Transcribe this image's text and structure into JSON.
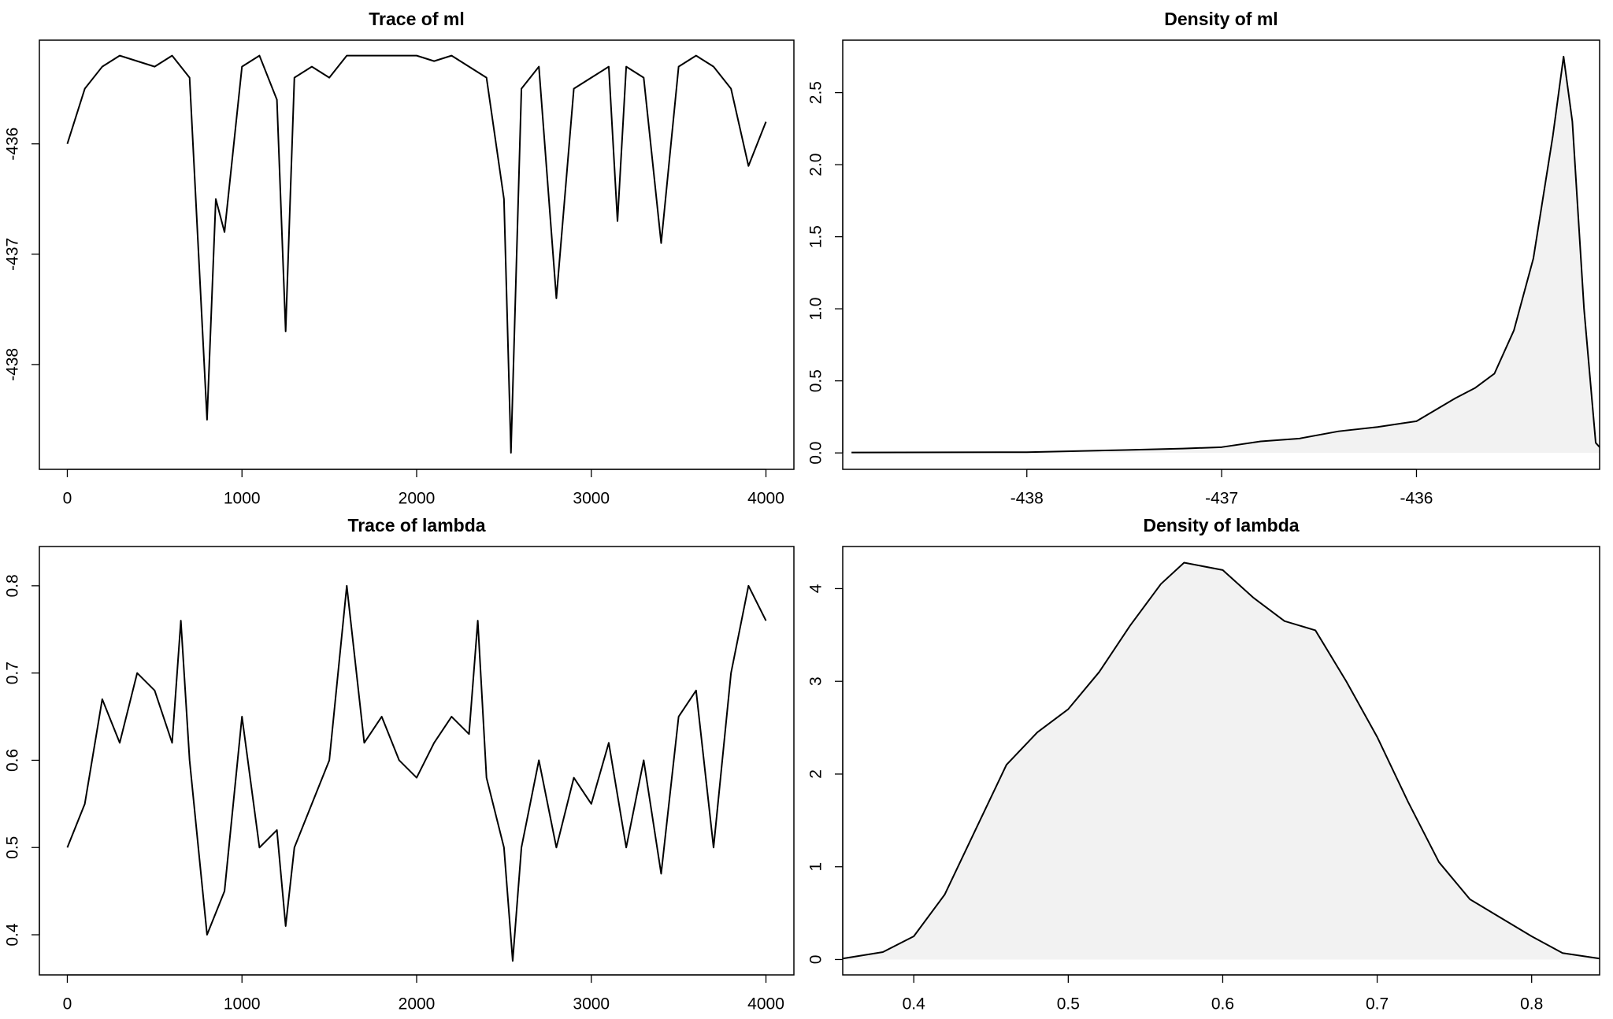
{
  "chart_data": [
    {
      "type": "line",
      "title": "Trace of ml",
      "color": "#000000",
      "x": [
        0,
        100,
        200,
        300,
        400,
        500,
        600,
        700,
        800,
        850,
        900,
        1000,
        1100,
        1200,
        1250,
        1300,
        1400,
        1500,
        1600,
        1700,
        1800,
        1900,
        2000,
        2100,
        2200,
        2300,
        2400,
        2500,
        2540,
        2600,
        2700,
        2800,
        2900,
        3000,
        3100,
        3150,
        3200,
        3300,
        3400,
        3500,
        3600,
        3700,
        3800,
        3900,
        4000
      ],
      "values": [
        -436.0,
        -435.5,
        -435.3,
        -435.2,
        -435.25,
        -435.3,
        -435.2,
        -435.4,
        -438.5,
        -436.5,
        -436.8,
        -435.3,
        -435.2,
        -435.6,
        -437.7,
        -435.4,
        -435.3,
        -435.4,
        -435.2,
        -435.2,
        -435.2,
        -435.2,
        -435.2,
        -435.25,
        -435.2,
        -435.3,
        -435.4,
        -436.5,
        -438.8,
        -435.5,
        -435.3,
        -437.4,
        -435.5,
        -435.4,
        -435.3,
        -436.7,
        -435.3,
        -435.4,
        -436.9,
        -435.3,
        -435.2,
        -435.3,
        -435.5,
        -436.2,
        -435.8
      ],
      "xlim": [
        -160,
        4160
      ],
      "ylim": [
        -438.95,
        -435.06
      ],
      "xticks": [
        0,
        1000,
        2000,
        3000,
        4000
      ],
      "yticks": [
        -438,
        -437,
        -436
      ]
    },
    {
      "type": "area",
      "title": "Density of ml",
      "color": "#000000",
      "fill": "#f2f2f2",
      "x": [
        -438.9,
        -438,
        -437.5,
        -437.2,
        -437,
        -436.8,
        -436.6,
        -436.4,
        -436.2,
        -436,
        -435.9,
        -435.8,
        -435.7,
        -435.6,
        -435.5,
        -435.4,
        -435.3,
        -435.245,
        -435.2,
        -435.14,
        -435.08,
        -435.06
      ],
      "values": [
        0.003,
        0.005,
        0.02,
        0.03,
        0.04,
        0.08,
        0.1,
        0.15,
        0.18,
        0.22,
        0.3,
        0.38,
        0.45,
        0.55,
        0.85,
        1.35,
        2.2,
        2.75,
        2.3,
        1.0,
        0.07,
        0.04
      ],
      "xlim": [
        -438.945,
        -435.06
      ],
      "ylim": [
        -0.114,
        2.864
      ],
      "xticks": [
        -438,
        -437,
        -436
      ],
      "yticks": [
        {
          "value": 0,
          "label": "0.0"
        },
        0.5,
        {
          "value": 1,
          "label": "1.0"
        },
        1.5,
        {
          "value": 2,
          "label": "2.0"
        },
        2.5
      ]
    },
    {
      "type": "line",
      "title": "Trace of lambda",
      "color": "#000000",
      "x": [
        0,
        100,
        200,
        300,
        400,
        500,
        600,
        650,
        700,
        800,
        900,
        1000,
        1100,
        1200,
        1250,
        1300,
        1400,
        1500,
        1600,
        1700,
        1800,
        1900,
        2000,
        2100,
        2200,
        2300,
        2350,
        2400,
        2500,
        2550,
        2600,
        2700,
        2800,
        2900,
        3000,
        3100,
        3200,
        3300,
        3400,
        3500,
        3600,
        3700,
        3800,
        3900,
        4000
      ],
      "values": [
        0.5,
        0.55,
        0.67,
        0.62,
        0.7,
        0.68,
        0.62,
        0.76,
        0.6,
        0.4,
        0.45,
        0.65,
        0.5,
        0.52,
        0.41,
        0.5,
        0.55,
        0.6,
        0.8,
        0.62,
        0.65,
        0.6,
        0.58,
        0.62,
        0.65,
        0.63,
        0.76,
        0.58,
        0.5,
        0.37,
        0.5,
        0.6,
        0.5,
        0.58,
        0.55,
        0.62,
        0.5,
        0.6,
        0.47,
        0.65,
        0.68,
        0.5,
        0.7,
        0.8,
        0.76
      ],
      "xlim": [
        -160,
        4160
      ],
      "ylim": [
        0.354,
        0.845
      ],
      "xticks": [
        0,
        1000,
        2000,
        3000,
        4000
      ],
      "yticks": [
        0.4,
        0.5,
        0.6,
        0.7,
        0.8
      ]
    },
    {
      "type": "area",
      "title": "Density of lambda",
      "color": "#000000",
      "fill": "#f2f2f2",
      "x": [
        0.354,
        0.38,
        0.4,
        0.42,
        0.44,
        0.46,
        0.48,
        0.5,
        0.52,
        0.54,
        0.56,
        0.575,
        0.6,
        0.62,
        0.64,
        0.66,
        0.68,
        0.7,
        0.72,
        0.74,
        0.76,
        0.78,
        0.8,
        0.82,
        0.844
      ],
      "values": [
        0.01,
        0.08,
        0.25,
        0.7,
        1.4,
        2.1,
        2.45,
        2.7,
        3.1,
        3.6,
        4.05,
        4.28,
        4.2,
        3.9,
        3.65,
        3.55,
        3.0,
        2.4,
        1.7,
        1.05,
        0.65,
        0.45,
        0.25,
        0.07,
        0.01
      ],
      "xlim": [
        0.354,
        0.844
      ],
      "ylim": [
        -0.166,
        4.454
      ],
      "xticks": [
        0.4,
        0.5,
        0.6,
        0.7,
        0.8
      ],
      "yticks": [
        0,
        1,
        2,
        3,
        4
      ]
    }
  ]
}
